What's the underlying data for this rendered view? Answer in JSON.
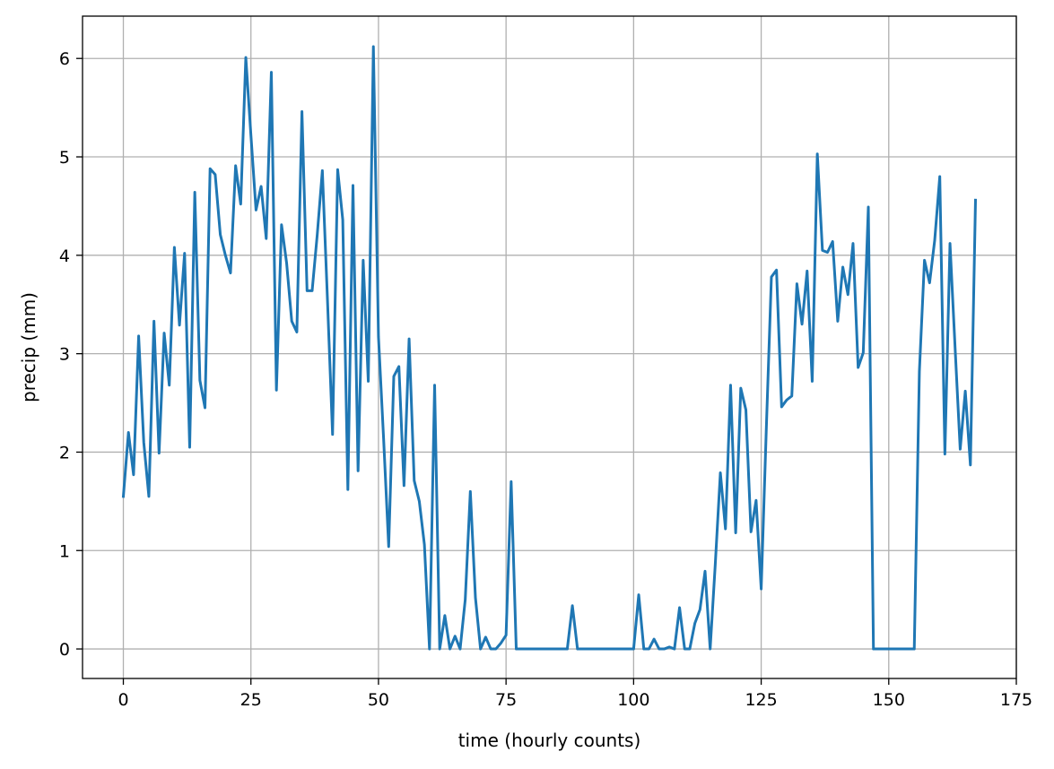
{
  "chart_data": {
    "type": "line",
    "title": "",
    "xlabel": "time (hourly counts)",
    "ylabel": "precip (mm)",
    "xlim": [
      -8,
      175
    ],
    "ylim": [
      -0.3,
      6.43
    ],
    "grid": true,
    "x_ticks": [
      0,
      25,
      50,
      75,
      100,
      125,
      150,
      175
    ],
    "y_ticks": [
      0,
      1,
      2,
      3,
      4,
      5,
      6
    ],
    "series": [
      {
        "color": "#1f77b4",
        "x": [
          0,
          1,
          2,
          3,
          4,
          5,
          6,
          7,
          8,
          9,
          10,
          11,
          12,
          13,
          14,
          15,
          16,
          17,
          18,
          19,
          20,
          21,
          22,
          23,
          24,
          25,
          26,
          27,
          28,
          29,
          30,
          31,
          32,
          33,
          34,
          35,
          36,
          37,
          38,
          39,
          40,
          41,
          42,
          43,
          44,
          45,
          46,
          47,
          48,
          49,
          50,
          51,
          52,
          53,
          54,
          55,
          56,
          57,
          58,
          59,
          60,
          61,
          62,
          63,
          64,
          65,
          66,
          67,
          68,
          69,
          70,
          71,
          72,
          73,
          74,
          75,
          76,
          77,
          78,
          79,
          80,
          81,
          82,
          83,
          84,
          85,
          86,
          87,
          88,
          89,
          90,
          91,
          92,
          93,
          94,
          95,
          96,
          97,
          98,
          99,
          100,
          101,
          102,
          103,
          104,
          105,
          106,
          107,
          108,
          109,
          110,
          111,
          112,
          113,
          114,
          115,
          116,
          117,
          118,
          119,
          120,
          121,
          122,
          123,
          124,
          125,
          126,
          127,
          128,
          129,
          130,
          131,
          132,
          133,
          134,
          135,
          136,
          137,
          138,
          139,
          140,
          141,
          142,
          143,
          144,
          145,
          146,
          147,
          148,
          149,
          150,
          151,
          152,
          153,
          154,
          155,
          156,
          157,
          158,
          159,
          160,
          161,
          162,
          163,
          164,
          165,
          166,
          167
        ],
        "y": [
          1.55,
          2.2,
          1.77,
          3.18,
          2.1,
          1.55,
          3.33,
          1.99,
          3.21,
          2.68,
          4.08,
          3.29,
          4.02,
          2.05,
          4.64,
          2.73,
          2.45,
          4.88,
          4.82,
          4.21,
          4.0,
          3.82,
          4.91,
          4.52,
          6.01,
          5.22,
          4.46,
          4.7,
          4.17,
          5.86,
          2.63,
          4.31,
          3.92,
          3.33,
          3.22,
          5.46,
          3.64,
          3.64,
          4.21,
          4.86,
          3.55,
          2.18,
          4.87,
          4.36,
          1.62,
          4.71,
          1.81,
          3.95,
          2.72,
          6.12,
          3.17,
          2.14,
          1.04,
          2.77,
          2.87,
          1.66,
          3.15,
          1.71,
          1.5,
          1.06,
          0.0,
          2.68,
          0.0,
          0.34,
          0.0,
          0.13,
          0.0,
          0.5,
          1.6,
          0.52,
          0.0,
          0.12,
          0.0,
          0.0,
          0.06,
          0.14,
          1.7,
          0.0,
          0.0,
          0.0,
          0.0,
          0.0,
          0.0,
          0.0,
          0.0,
          0.0,
          0.0,
          0.0,
          0.44,
          0.0,
          0.0,
          0.0,
          0.0,
          0.0,
          0.0,
          0.0,
          0.0,
          0.0,
          0.0,
          0.0,
          0.0,
          0.55,
          0.0,
          0.0,
          0.1,
          0.0,
          0.0,
          0.02,
          0.0,
          0.42,
          0.0,
          0.0,
          0.26,
          0.4,
          0.79,
          0.0,
          0.86,
          1.79,
          1.22,
          2.68,
          1.18,
          2.65,
          2.43,
          1.19,
          1.51,
          0.61,
          2.23,
          3.78,
          3.85,
          2.46,
          2.53,
          2.57,
          3.71,
          3.3,
          3.84,
          2.72,
          5.03,
          4.05,
          4.03,
          4.14,
          3.33,
          3.88,
          3.6,
          4.12,
          2.86,
          3.01,
          4.49,
          0.0,
          0.0,
          0.0,
          0.0,
          0.0,
          0.0,
          0.0,
          0.0,
          0.0,
          2.82,
          3.95,
          3.72,
          4.15,
          4.8,
          1.98,
          4.12,
          3.06,
          2.03,
          2.62,
          1.87,
          4.56
        ]
      }
    ]
  }
}
